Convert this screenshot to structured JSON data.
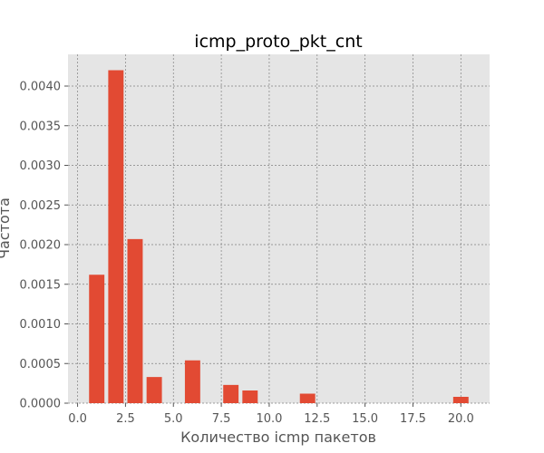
{
  "chart_data": {
    "type": "bar",
    "title": "icmp_proto_pkt_cnt",
    "xlabel": "Количество icmp пакетов",
    "ylabel": "Частота",
    "xlim": [
      -0.5,
      21.5
    ],
    "ylim": [
      0,
      0.0044
    ],
    "xticks": [
      0.0,
      2.5,
      5.0,
      7.5,
      10.0,
      12.5,
      15.0,
      17.5,
      20.0
    ],
    "xtick_labels": [
      "0.0",
      "2.5",
      "5.0",
      "7.5",
      "10.0",
      "12.5",
      "15.0",
      "17.5",
      "20.0"
    ],
    "yticks": [
      0,
      0.0005,
      0.001,
      0.0015,
      0.002,
      0.0025,
      0.003,
      0.0035,
      0.004
    ],
    "ytick_labels": [
      "0.0000",
      "0.0005",
      "0.0010",
      "0.0015",
      "0.0020",
      "0.0025",
      "0.0030",
      "0.0035",
      "0.0040"
    ],
    "grid": true,
    "bar_color": "#e24a33",
    "background_color": "#e5e5e5",
    "grid_color": "#808080",
    "x": [
      1,
      2,
      3,
      4,
      6,
      8,
      9,
      12,
      20
    ],
    "values": [
      0.00162,
      0.0042,
      0.00207,
      0.00033,
      0.00054,
      0.00023,
      0.00016,
      0.00012,
      8e-05
    ]
  }
}
